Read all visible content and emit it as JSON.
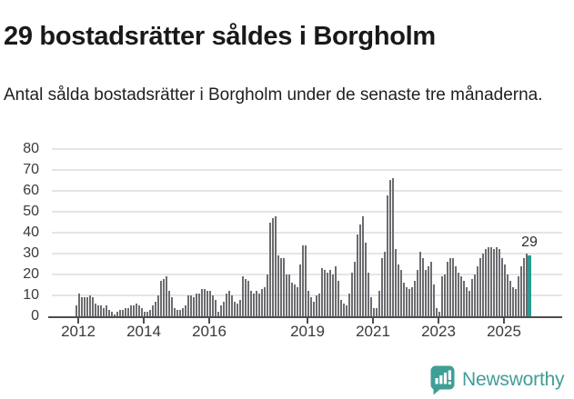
{
  "title": "29 bostadsrätter såldes i Borgholm",
  "subtitle": "Antal sålda bostadsrätter i Borgholm under de senaste tre månaderna.",
  "branding": {
    "logo_text": "Newsworthy",
    "brand_color": "#3f9e98"
  },
  "colors": {
    "bar": "#6c6c71",
    "highlight": "#2d9b93",
    "gridline": "#e5e5e5",
    "axis": "#4d4d4d"
  },
  "chart_data": {
    "type": "bar",
    "title": "29 bostadsrätter såldes i Borgholm",
    "xlabel": "",
    "ylabel": "",
    "ylim": [
      0,
      80
    ],
    "grid": true,
    "y_ticks": [
      0,
      10,
      20,
      30,
      40,
      50,
      60,
      70,
      80
    ],
    "x_ticks": [
      {
        "label": "2012",
        "month_index": 1
      },
      {
        "label": "2014",
        "month_index": 25
      },
      {
        "label": "2016",
        "month_index": 49
      },
      {
        "label": "2019",
        "month_index": 85
      },
      {
        "label": "2021",
        "month_index": 109
      },
      {
        "label": "2023",
        "month_index": 133
      },
      {
        "label": "2025",
        "month_index": 157
      }
    ],
    "series_start": "2011-12",
    "series_interval": "month",
    "values": [
      5,
      11,
      9,
      9,
      9,
      10,
      9,
      6,
      5,
      5,
      4,
      5,
      3,
      2,
      1,
      2,
      3,
      3,
      4,
      4,
      5,
      5,
      6,
      5,
      4,
      2,
      2,
      3,
      5,
      7,
      10,
      17,
      18,
      19,
      12,
      9,
      4,
      3,
      3,
      4,
      5,
      10,
      10,
      9,
      11,
      11,
      13,
      13,
      12,
      12,
      10,
      8,
      2,
      5,
      7,
      11,
      12,
      10,
      7,
      6,
      8,
      19,
      18,
      17,
      12,
      11,
      12,
      11,
      13,
      14,
      20,
      45,
      47,
      48,
      29,
      28,
      28,
      20,
      20,
      16,
      15,
      14,
      25,
      34,
      34,
      12,
      9,
      7,
      10,
      11,
      23,
      22,
      21,
      22,
      20,
      24,
      17,
      8,
      6,
      5,
      11,
      21,
      26,
      39,
      44,
      48,
      35,
      21,
      9,
      4,
      4,
      12,
      28,
      31,
      58,
      65,
      66,
      32,
      25,
      22,
      16,
      14,
      13,
      14,
      17,
      22,
      31,
      28,
      22,
      24,
      26,
      15,
      4,
      2,
      19,
      20,
      26,
      28,
      28,
      24,
      21,
      19,
      17,
      14,
      12,
      18,
      20,
      24,
      28,
      30,
      32,
      33,
      33,
      32,
      33,
      32,
      28,
      25,
      20,
      17,
      14,
      13,
      19,
      24,
      28,
      30,
      29
    ],
    "highlight": {
      "index": 166,
      "value": 29,
      "label": "29"
    }
  }
}
